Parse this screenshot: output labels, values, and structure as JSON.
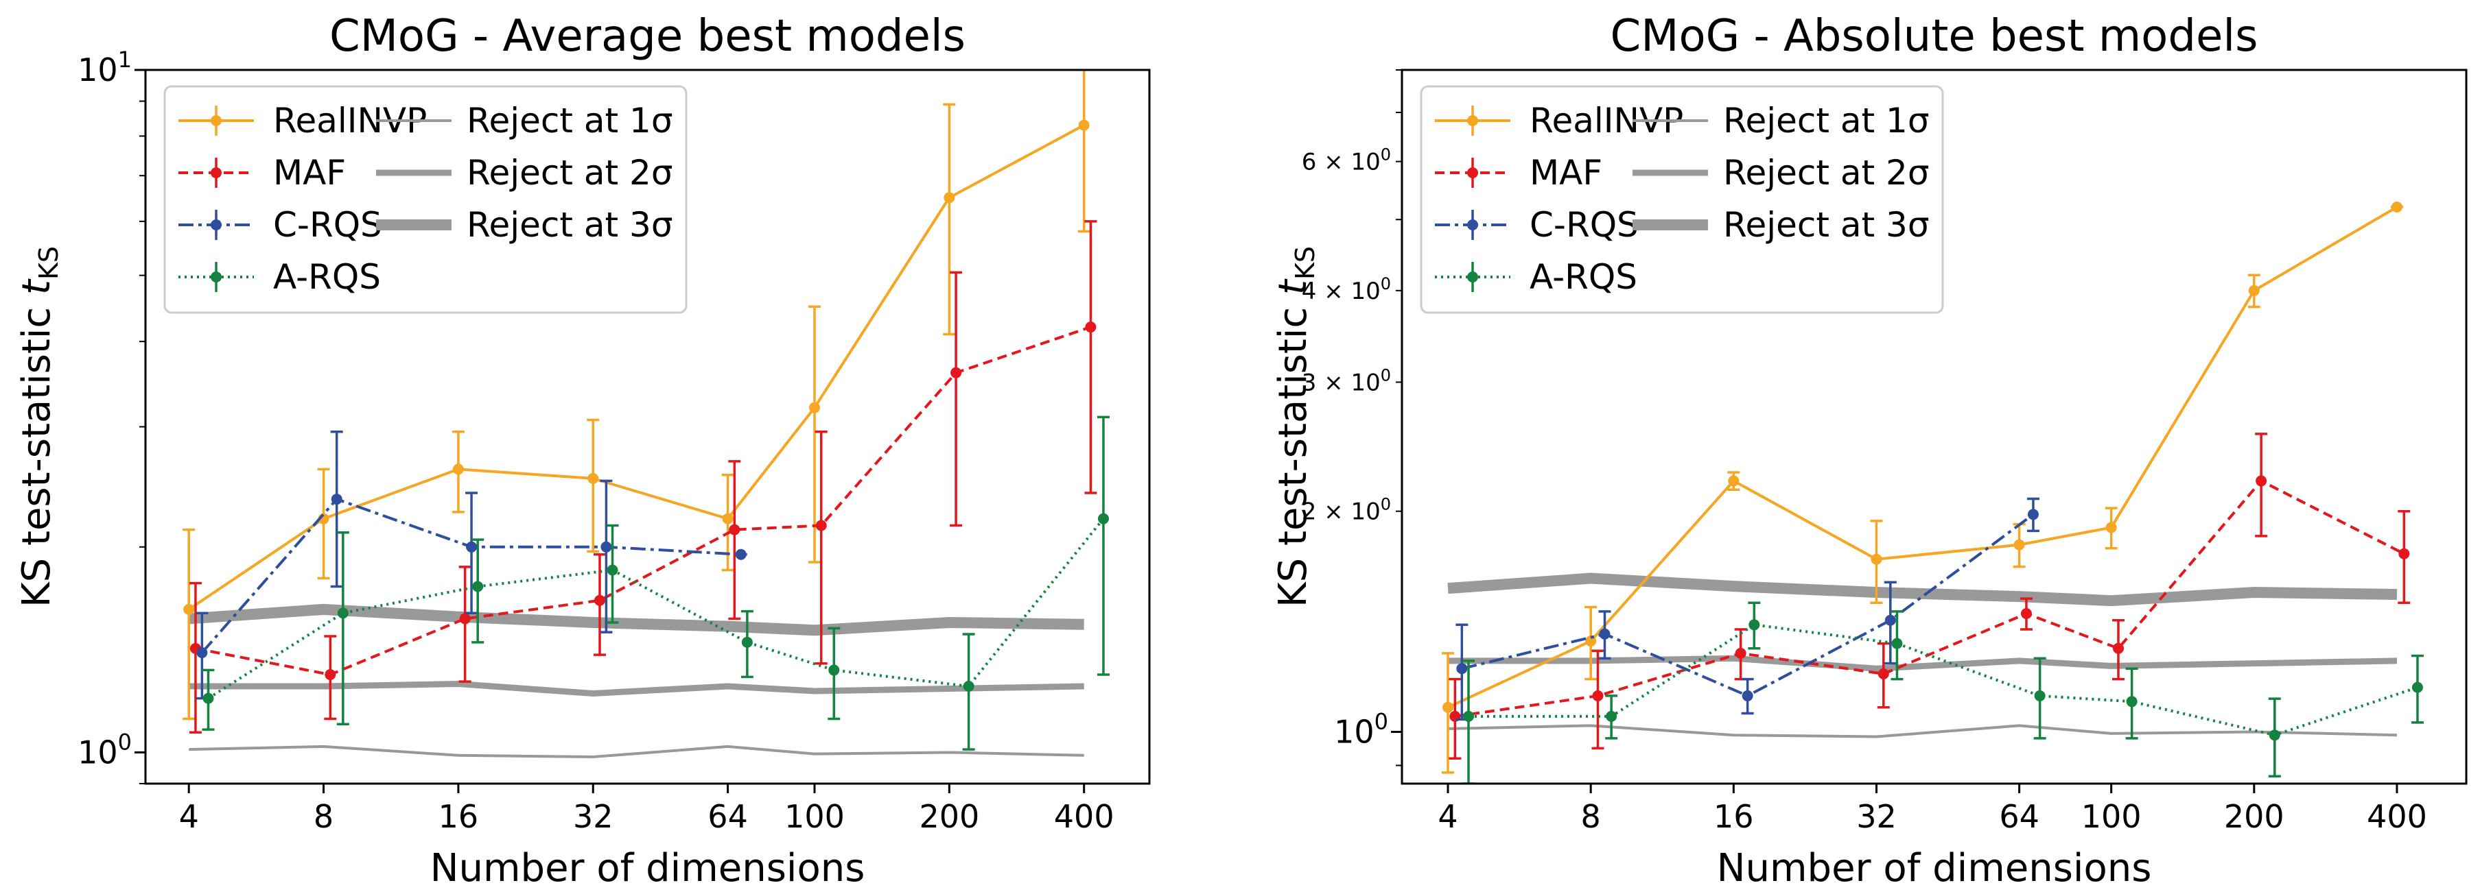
{
  "chart_data": [
    {
      "type": "line",
      "title": "CMoG - Average best models",
      "xlabel": "Number of dimensions",
      "ylabel": "KS test-statistic",
      "ylabel_symbol": "t",
      "ylabel_subscript": "KS",
      "xscale": "log",
      "yscale": "log",
      "xlim": [
        3.2,
        560
      ],
      "ylim": [
        0.9,
        10
      ],
      "xticks": [
        4,
        8,
        16,
        32,
        64,
        100,
        200,
        400
      ],
      "xtick_labels": [
        "4",
        "8",
        "16",
        "32",
        "64",
        "100",
        "200",
        "400"
      ],
      "yticks_major": [
        {
          "value": 1,
          "base": "10",
          "exp": "0"
        },
        {
          "value": 10,
          "base": "10",
          "exp": "1"
        }
      ],
      "yticks_minor": [],
      "legend": {
        "location": "upper-left",
        "columns": 2
      },
      "series": [
        {
          "name": "RealINVP",
          "color": "#f5a623",
          "style": "solid",
          "x": [
            4,
            8,
            16,
            32,
            64,
            100,
            200,
            400
          ],
          "y": [
            1.62,
            2.2,
            2.6,
            2.52,
            2.2,
            3.2,
            6.5,
            8.3
          ],
          "err": [
            0.5,
            0.4,
            0.35,
            0.55,
            0.35,
            1.3,
            2.4,
            2.5
          ],
          "x_offset": 1.0
        },
        {
          "name": "MAF",
          "color": "#e3171c",
          "style": "dashed",
          "x": [
            4,
            8,
            16,
            32,
            64,
            100,
            200,
            400
          ],
          "y": [
            1.42,
            1.3,
            1.57,
            1.67,
            2.12,
            2.15,
            3.6,
            4.2
          ],
          "err": [
            0.35,
            0.18,
            0.3,
            0.28,
            0.55,
            0.8,
            1.45,
            1.8
          ],
          "x_offset": 1.035
        },
        {
          "name": "C-RQS",
          "color": "#2f4e9e",
          "style": "dashdot",
          "x": [
            4,
            8,
            16,
            32,
            64
          ],
          "y": [
            1.4,
            2.35,
            2.0,
            2.0,
            1.95
          ],
          "err": [
            0.2,
            0.6,
            0.4,
            0.5,
            0.0
          ],
          "x_offset": 1.07
        },
        {
          "name": "A-RQS",
          "color": "#13833f",
          "style": "dotted",
          "x": [
            4,
            8,
            16,
            32,
            64,
            100,
            200,
            400
          ],
          "y": [
            1.2,
            1.6,
            1.75,
            1.85,
            1.45,
            1.32,
            1.25,
            2.2
          ],
          "err": [
            0.12,
            0.5,
            0.3,
            0.3,
            0.16,
            0.2,
            0.24,
            0.9
          ],
          "x_offset": 1.105
        }
      ],
      "reference_lines": [
        {
          "name": "Reject at 1σ",
          "color": "#999999",
          "weight": "thin",
          "x": [
            4,
            8,
            16,
            32,
            64,
            100,
            200,
            400
          ],
          "y": [
            1.01,
            1.02,
            0.99,
            0.985,
            1.02,
            0.995,
            1.0,
            0.99
          ]
        },
        {
          "name": "Reject at 2σ",
          "color": "#999999",
          "weight": "medium",
          "x": [
            4,
            8,
            16,
            32,
            64,
            100,
            200,
            400
          ],
          "y": [
            1.25,
            1.25,
            1.26,
            1.22,
            1.25,
            1.23,
            1.24,
            1.25
          ]
        },
        {
          "name": "Reject at 3σ",
          "color": "#999999",
          "weight": "thick",
          "x": [
            4,
            8,
            16,
            32,
            64,
            100,
            200,
            400
          ],
          "y": [
            1.57,
            1.62,
            1.58,
            1.55,
            1.53,
            1.51,
            1.55,
            1.54
          ]
        }
      ]
    },
    {
      "type": "line",
      "title": "CMoG - Absolute best models",
      "xlabel": "Number of dimensions",
      "ylabel": "KS test-statistic",
      "ylabel_symbol": "t",
      "ylabel_subscript": "KS",
      "xscale": "log",
      "yscale": "log",
      "xlim": [
        3.2,
        560
      ],
      "ylim": [
        0.85,
        8
      ],
      "xticks": [
        4,
        8,
        16,
        32,
        64,
        100,
        200,
        400
      ],
      "xtick_labels": [
        "4",
        "8",
        "16",
        "32",
        "64",
        "100",
        "200",
        "400"
      ],
      "yticks_major": [
        {
          "value": 1,
          "base": "10",
          "exp": "0"
        }
      ],
      "yticks_minor": [
        {
          "value": 2,
          "mant": "2",
          "base": "10",
          "exp": "0"
        },
        {
          "value": 3,
          "mant": "3",
          "base": "10",
          "exp": "0"
        },
        {
          "value": 4,
          "mant": "4",
          "base": "10",
          "exp": "0"
        },
        {
          "value": 6,
          "mant": "6",
          "base": "10",
          "exp": "0"
        }
      ],
      "legend": {
        "location": "upper-left",
        "columns": 2
      },
      "series": [
        {
          "name": "RealINVP",
          "color": "#f5a623",
          "style": "solid",
          "x": [
            4,
            8,
            16,
            32,
            64,
            100,
            200,
            400
          ],
          "y": [
            1.08,
            1.33,
            2.2,
            1.72,
            1.8,
            1.9,
            4.0,
            5.2
          ],
          "err": [
            0.2,
            0.15,
            0.06,
            0.22,
            0.12,
            0.12,
            0.2,
            0.0
          ],
          "x_offset": 1.0
        },
        {
          "name": "MAF",
          "color": "#e3171c",
          "style": "dashed",
          "x": [
            4,
            8,
            16,
            32,
            64,
            100,
            200,
            400
          ],
          "y": [
            1.05,
            1.12,
            1.28,
            1.2,
            1.45,
            1.3,
            2.2,
            1.75
          ],
          "err": [
            0.13,
            0.17,
            0.1,
            0.12,
            0.07,
            0.12,
            0.35,
            0.25
          ],
          "x_offset": 1.035
        },
        {
          "name": "C-RQS",
          "color": "#2f4e9e",
          "style": "dashdot",
          "x": [
            4,
            8,
            16,
            32,
            64
          ],
          "y": [
            1.22,
            1.36,
            1.12,
            1.42,
            1.98
          ],
          "err": [
            0.18,
            0.1,
            0.06,
            0.18,
            0.1
          ],
          "x_offset": 1.07
        },
        {
          "name": "A-RQS",
          "color": "#13833f",
          "style": "dotted",
          "x": [
            4,
            8,
            16,
            32,
            64,
            100,
            200,
            400
          ],
          "y": [
            1.05,
            1.05,
            1.4,
            1.32,
            1.12,
            1.1,
            0.99,
            1.15
          ],
          "err": [
            0.2,
            0.07,
            0.1,
            0.14,
            0.14,
            0.12,
            0.12,
            0.12
          ],
          "x_offset": 1.105
        }
      ],
      "reference_lines": [
        {
          "name": "Reject at 1σ",
          "color": "#999999",
          "weight": "thin",
          "x": [
            4,
            8,
            16,
            32,
            64,
            100,
            200,
            400
          ],
          "y": [
            1.01,
            1.02,
            0.99,
            0.985,
            1.02,
            0.995,
            1.0,
            0.99
          ]
        },
        {
          "name": "Reject at 2σ",
          "color": "#999999",
          "weight": "medium",
          "x": [
            4,
            8,
            16,
            32,
            64,
            100,
            200,
            400
          ],
          "y": [
            1.25,
            1.25,
            1.26,
            1.22,
            1.25,
            1.23,
            1.24,
            1.25
          ]
        },
        {
          "name": "Reject at 3σ",
          "color": "#999999",
          "weight": "thick",
          "x": [
            4,
            8,
            16,
            32,
            64,
            100,
            200,
            400
          ],
          "y": [
            1.57,
            1.62,
            1.58,
            1.55,
            1.53,
            1.51,
            1.55,
            1.54
          ]
        }
      ]
    }
  ]
}
